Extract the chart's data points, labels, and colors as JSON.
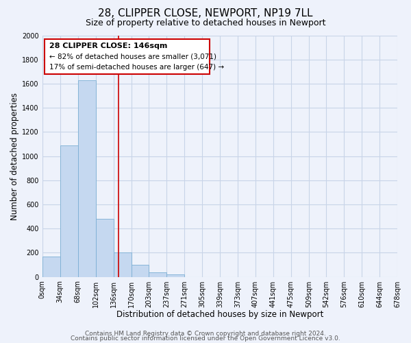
{
  "title": "28, CLIPPER CLOSE, NEWPORT, NP19 7LL",
  "subtitle": "Size of property relative to detached houses in Newport",
  "xlabel": "Distribution of detached houses by size in Newport",
  "ylabel": "Number of detached properties",
  "bar_edges": [
    0,
    34,
    68,
    102,
    136,
    170,
    203,
    237,
    271,
    305,
    339,
    373,
    407,
    441,
    475,
    509,
    542,
    576,
    610,
    644,
    678
  ],
  "bar_heights": [
    170,
    1090,
    1630,
    480,
    200,
    100,
    40,
    20,
    0,
    0,
    0,
    0,
    0,
    0,
    0,
    0,
    0,
    0,
    0,
    0
  ],
  "bar_color": "#c5d8f0",
  "bar_edge_color": "#7bafd4",
  "property_line_x": 146,
  "property_line_color": "#cc0000",
  "ylim": [
    0,
    2000
  ],
  "xlim": [
    0,
    678
  ],
  "yticks": [
    0,
    200,
    400,
    600,
    800,
    1000,
    1200,
    1400,
    1600,
    1800,
    2000
  ],
  "xtick_labels": [
    "0sqm",
    "34sqm",
    "68sqm",
    "102sqm",
    "136sqm",
    "170sqm",
    "203sqm",
    "237sqm",
    "271sqm",
    "305sqm",
    "339sqm",
    "373sqm",
    "407sqm",
    "441sqm",
    "475sqm",
    "509sqm",
    "542sqm",
    "576sqm",
    "610sqm",
    "644sqm",
    "678sqm"
  ],
  "ann_line1": "28 CLIPPER CLOSE: 146sqm",
  "ann_line2": "← 82% of detached houses are smaller (3,071)",
  "ann_line3": "17% of semi-detached houses are larger (647) →",
  "ann_box_edge_color": "#cc0000",
  "ann_box_facecolor": "#ffffff",
  "footer_line1": "Contains HM Land Registry data © Crown copyright and database right 2024.",
  "footer_line2": "Contains public sector information licensed under the Open Government Licence v3.0.",
  "background_color": "#eef2fb",
  "grid_color": "#c8d4e8",
  "title_fontsize": 11,
  "subtitle_fontsize": 9,
  "axis_label_fontsize": 8.5,
  "tick_fontsize": 7,
  "footer_fontsize": 6.5,
  "ann_fontsize": 8
}
